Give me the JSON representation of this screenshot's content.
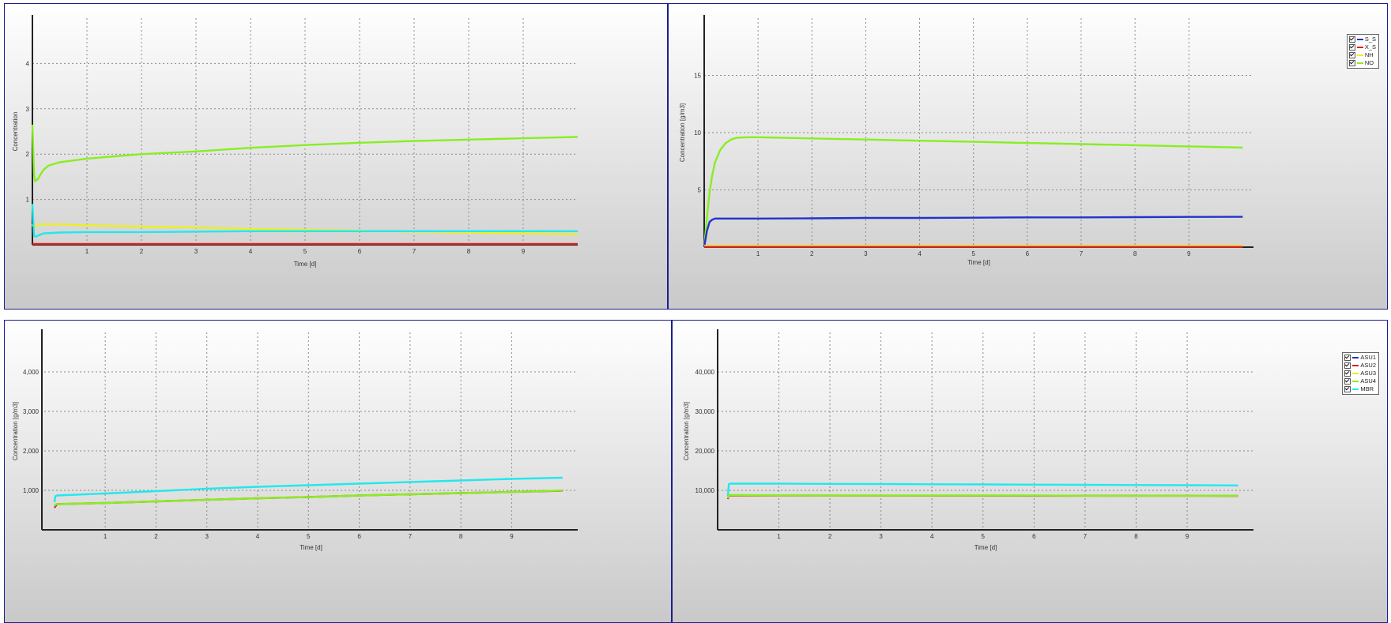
{
  "chart_data": [
    {
      "type": "line",
      "xlabel": "Time [d]",
      "ylabel": "Concentration",
      "xlim": [
        0,
        10
      ],
      "ylim": [
        0,
        5
      ],
      "xticks": [
        1,
        2,
        3,
        4,
        5,
        6,
        7,
        8,
        9
      ],
      "yticks": [
        1,
        2,
        3,
        4
      ],
      "ytick_labels": [
        "1",
        "2",
        "3",
        "4"
      ],
      "grid": true,
      "legend": null,
      "series": [
        {
          "color": "#88ee22",
          "x": [
            0,
            0.03,
            0.05,
            0.1,
            0.2,
            0.3,
            0.5,
            1,
            2,
            3,
            4,
            5,
            6,
            7,
            8,
            9,
            10
          ],
          "y": [
            2.65,
            1.55,
            1.4,
            1.45,
            1.65,
            1.75,
            1.82,
            1.9,
            2.0,
            2.06,
            2.14,
            2.2,
            2.25,
            2.29,
            2.32,
            2.35,
            2.38
          ]
        },
        {
          "color": "#eeee22",
          "x": [
            0,
            0.03,
            0.1,
            0.5,
            1,
            2,
            3,
            4,
            5,
            6,
            7,
            8,
            9,
            10
          ],
          "y": [
            0.45,
            0.38,
            0.45,
            0.45,
            0.43,
            0.4,
            0.38,
            0.35,
            0.33,
            0.31,
            0.29,
            0.27,
            0.25,
            0.23
          ]
        },
        {
          "color": "#22e8ee",
          "x": [
            0,
            0.03,
            0.05,
            0.1,
            0.2,
            0.5,
            1,
            2,
            3,
            4,
            5,
            6,
            7,
            8,
            9,
            10
          ],
          "y": [
            0.9,
            0.2,
            0.18,
            0.2,
            0.25,
            0.27,
            0.28,
            0.28,
            0.29,
            0.3,
            0.3,
            0.3,
            0.3,
            0.3,
            0.3,
            0.3
          ]
        },
        {
          "color": "#dd2222",
          "x": [
            0,
            10
          ],
          "y": [
            0.02,
            0.02
          ]
        }
      ]
    },
    {
      "type": "line",
      "xlabel": "Time [d]",
      "ylabel": "Concentration [g/m3]",
      "xlim": [
        0,
        10.2
      ],
      "ylim": [
        0,
        20
      ],
      "xticks": [
        1,
        2,
        3,
        4,
        5,
        6,
        7,
        8,
        9
      ],
      "yticks": [
        5,
        10,
        15
      ],
      "ytick_labels": [
        "5",
        "10",
        "15"
      ],
      "grid": true,
      "legend": {
        "position": "top-right",
        "items": [
          {
            "label": "S_S",
            "color": "#2233cc"
          },
          {
            "label": "X_S",
            "color": "#dd2222"
          },
          {
            "label": "NH",
            "color": "#eeee22"
          },
          {
            "label": "NO",
            "color": "#88ee22"
          }
        ]
      },
      "series": [
        {
          "name": "NO",
          "color": "#88ee22",
          "x": [
            0,
            0.05,
            0.1,
            0.15,
            0.2,
            0.3,
            0.4,
            0.5,
            0.6,
            0.8,
            1,
            2,
            3,
            4,
            5,
            6,
            7,
            8,
            9,
            10
          ],
          "y": [
            0,
            2.5,
            4.8,
            6.3,
            7.4,
            8.5,
            9.1,
            9.4,
            9.55,
            9.6,
            9.6,
            9.5,
            9.4,
            9.3,
            9.2,
            9.1,
            9.0,
            8.9,
            8.8,
            8.7
          ]
        },
        {
          "name": "S_S",
          "color": "#2233cc",
          "x": [
            0,
            0.05,
            0.1,
            0.15,
            0.2,
            1,
            2,
            3,
            4,
            5,
            6,
            7,
            8,
            9,
            10
          ],
          "y": [
            0,
            1.4,
            2.2,
            2.4,
            2.5,
            2.5,
            2.52,
            2.55,
            2.55,
            2.57,
            2.6,
            2.6,
            2.62,
            2.64,
            2.65
          ]
        },
        {
          "name": "NH",
          "color": "#eeee22",
          "x": [
            0,
            10
          ],
          "y": [
            0.12,
            0.12
          ]
        },
        {
          "name": "X_S",
          "color": "#dd2222",
          "x": [
            0,
            10
          ],
          "y": [
            0.02,
            0.02
          ]
        }
      ]
    },
    {
      "type": "line",
      "xlabel": "Time [d]",
      "ylabel": "Concentration [g/m3]",
      "xlim": [
        -0.2,
        10.3
      ],
      "ylim": [
        0,
        5000
      ],
      "xticks": [
        1,
        2,
        3,
        4,
        5,
        6,
        7,
        8,
        9
      ],
      "yticks": [
        1000,
        2000,
        3000,
        4000
      ],
      "ytick_labels": [
        "1,000",
        "2,000",
        "3,000",
        "4,000"
      ],
      "grid": true,
      "legend": null,
      "series": [
        {
          "color": "#22e8ee",
          "x": [
            0,
            0.02,
            0.05,
            1,
            2,
            3,
            4,
            5,
            6,
            7,
            8,
            9,
            10
          ],
          "y": [
            700,
            850,
            870,
            920,
            980,
            1040,
            1090,
            1130,
            1170,
            1210,
            1250,
            1290,
            1320
          ]
        },
        {
          "color": "#dd2222",
          "x": [
            0,
            0.05,
            1,
            2,
            3,
            4,
            5,
            6,
            7,
            8,
            9,
            10
          ],
          "y": [
            560,
            650,
            680,
            720,
            760,
            800,
            830,
            870,
            900,
            930,
            960,
            990
          ]
        },
        {
          "color": "#88ee22",
          "x": [
            0,
            0.02,
            0.05,
            1,
            2,
            3,
            4,
            5,
            6,
            7,
            8,
            9,
            10
          ],
          "y": [
            600,
            640,
            650,
            680,
            720,
            760,
            800,
            830,
            870,
            900,
            930,
            960,
            995
          ]
        }
      ]
    },
    {
      "type": "line",
      "xlabel": "Time [d]",
      "ylabel": "Concentration [g/m3]",
      "xlim": [
        -0.2,
        10.3
      ],
      "ylim": [
        0,
        50000
      ],
      "xticks": [
        1,
        2,
        3,
        4,
        5,
        6,
        7,
        8,
        9
      ],
      "yticks": [
        10000,
        20000,
        30000,
        40000
      ],
      "ytick_labels": [
        "10,000",
        "20,000",
        "30,000",
        "40,000"
      ],
      "grid": true,
      "legend": {
        "position": "top-right",
        "items": [
          {
            "label": "ASU1",
            "color": "#2233cc"
          },
          {
            "label": "ASU2",
            "color": "#dd2222"
          },
          {
            "label": "ASU3",
            "color": "#eeee22"
          },
          {
            "label": "ASU4",
            "color": "#88ee22"
          },
          {
            "label": "MBR",
            "color": "#22e8ee"
          }
        ]
      },
      "series": [
        {
          "name": "MBR",
          "color": "#22e8ee",
          "x": [
            0,
            0.02,
            0.05,
            1,
            2,
            3,
            4,
            5,
            6,
            7,
            8,
            9,
            10
          ],
          "y": [
            8500,
            11600,
            11700,
            11700,
            11650,
            11600,
            11550,
            11500,
            11450,
            11400,
            11350,
            11300,
            11250
          ]
        },
        {
          "name": "ASU2",
          "color": "#dd2222",
          "x": [
            0,
            0.02,
            0.05,
            10
          ],
          "y": [
            7800,
            8700,
            8700,
            8600
          ]
        },
        {
          "name": "ASU4",
          "color": "#88ee22",
          "x": [
            0,
            0.02,
            0.05,
            1,
            2,
            3,
            4,
            5,
            6,
            7,
            8,
            9,
            10
          ],
          "y": [
            8000,
            8800,
            8800,
            8750,
            8700,
            8700,
            8700,
            8700,
            8700,
            8650,
            8650,
            8650,
            8650
          ]
        }
      ]
    }
  ]
}
